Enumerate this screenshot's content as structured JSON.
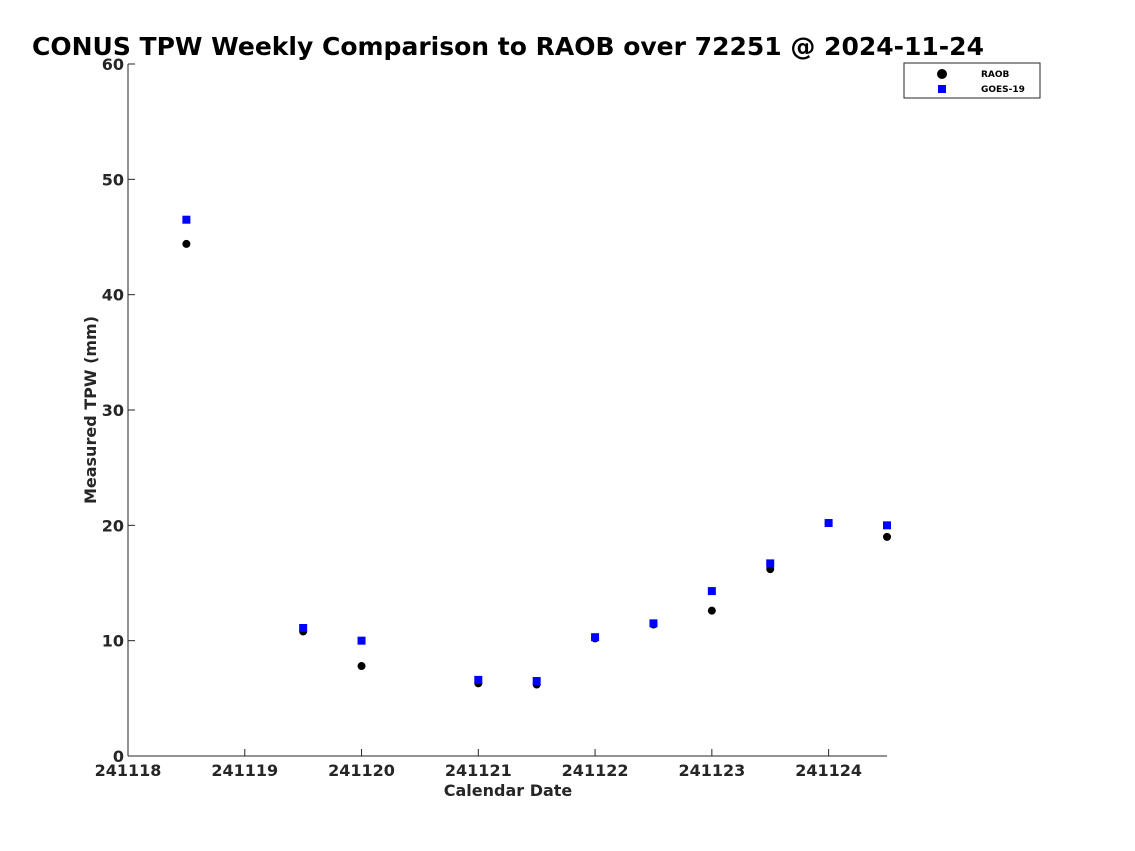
{
  "chart_data": {
    "type": "scatter",
    "title": "CONUS TPW Weekly Comparison to RAOB over 72251 @ 2024-11-24",
    "xlabel": "Calendar Date",
    "ylabel": "Measured TPW (mm)",
    "xlim": [
      0,
      6.5
    ],
    "ylim": [
      0,
      60
    ],
    "xticks": [
      0,
      1,
      2,
      3,
      4,
      5,
      6
    ],
    "xtick_labels": [
      "241118",
      "241119",
      "241120",
      "241121",
      "241122",
      "241123",
      "241124"
    ],
    "yticks": [
      0,
      10,
      20,
      30,
      40,
      50,
      60
    ],
    "ytick_labels": [
      "0",
      "10",
      "20",
      "30",
      "40",
      "50",
      "60"
    ],
    "grid": false,
    "legend_position": "top-right",
    "series": [
      {
        "name": "RAOB",
        "marker": "circle",
        "color": "#000000",
        "x": [
          0.5,
          1.5,
          2.0,
          3.0,
          3.5,
          4.0,
          4.5,
          5.0,
          5.5,
          6.0,
          6.5
        ],
        "y": [
          44.4,
          10.8,
          7.8,
          6.3,
          6.2,
          10.2,
          11.4,
          12.6,
          16.2,
          20.2,
          19.0
        ]
      },
      {
        "name": "GOES-19",
        "marker": "square",
        "color": "#0000ff",
        "x": [
          0.5,
          1.5,
          2.0,
          3.0,
          3.5,
          4.0,
          4.5,
          5.0,
          5.5,
          6.0,
          6.5
        ],
        "y": [
          46.5,
          11.1,
          10.0,
          6.6,
          6.5,
          10.3,
          11.5,
          14.3,
          16.7,
          20.2,
          20.0
        ]
      }
    ]
  }
}
